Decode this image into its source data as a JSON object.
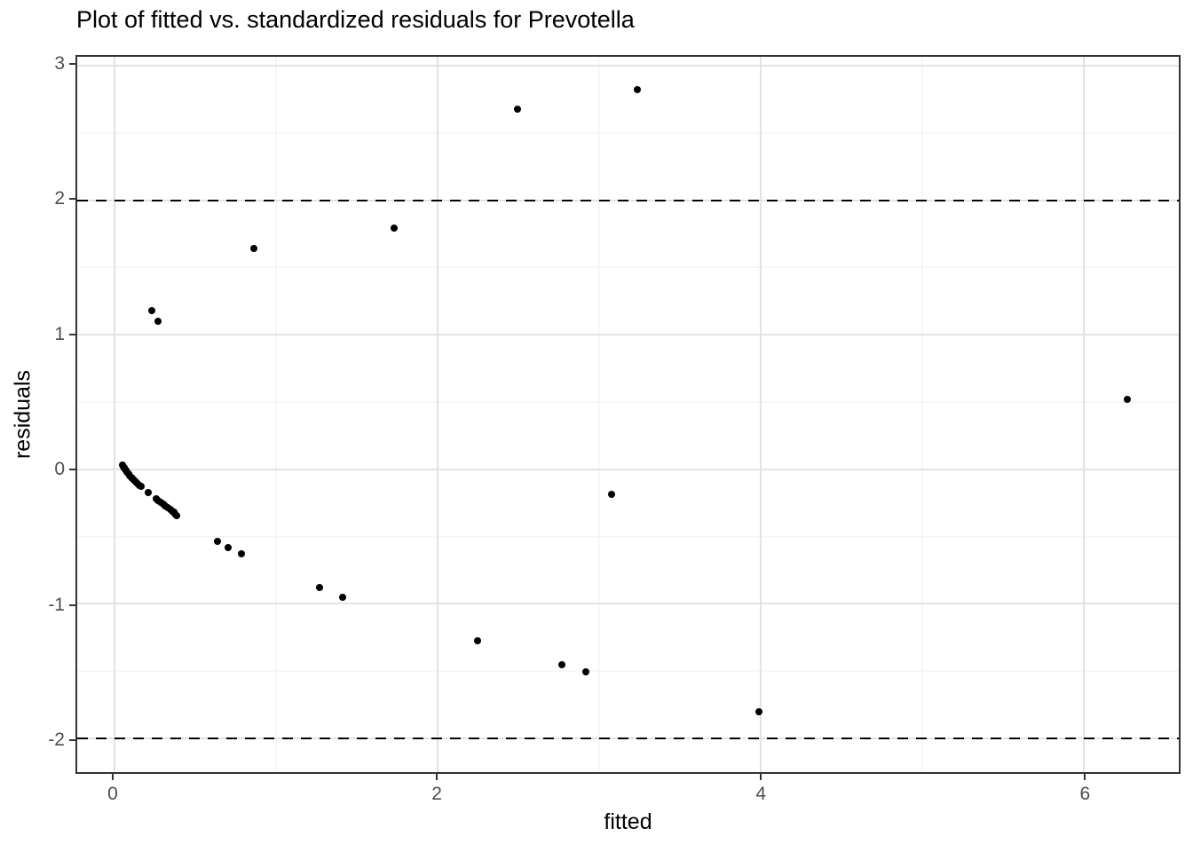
{
  "chart_data": {
    "type": "scatter",
    "title": "Plot of fitted vs. standardized residuals for Prevotella",
    "xlabel": "fitted",
    "ylabel": "residuals",
    "xlim": [
      -0.23,
      6.59
    ],
    "ylim": [
      -2.25,
      3.066
    ],
    "grid": true,
    "legend": null,
    "x_major_ticks": [
      0,
      2,
      4,
      6
    ],
    "x_minor_ticks": [
      1,
      3,
      5
    ],
    "y_major_ticks": [
      -2,
      -1,
      0,
      1,
      2,
      3
    ],
    "y_minor_ticks": [
      -1.5,
      -0.5,
      0.5,
      1.5,
      2.5
    ],
    "hlines": [
      {
        "y": 2,
        "style": "dashed"
      },
      {
        "y": -2,
        "style": "dashed"
      }
    ],
    "points": [
      [
        0.05,
        0.03
      ],
      [
        0.056,
        0.02
      ],
      [
        0.062,
        0.01
      ],
      [
        0.068,
        0.0
      ],
      [
        0.074,
        -0.01
      ],
      [
        0.08,
        -0.022
      ],
      [
        0.088,
        -0.034
      ],
      [
        0.096,
        -0.046
      ],
      [
        0.104,
        -0.058
      ],
      [
        0.113,
        -0.07
      ],
      [
        0.122,
        -0.082
      ],
      [
        0.132,
        -0.094
      ],
      [
        0.143,
        -0.106
      ],
      [
        0.154,
        -0.117
      ],
      [
        0.164,
        -0.125
      ],
      [
        0.208,
        -0.173
      ],
      [
        0.258,
        -0.218
      ],
      [
        0.272,
        -0.232
      ],
      [
        0.287,
        -0.245
      ],
      [
        0.301,
        -0.258
      ],
      [
        0.316,
        -0.272
      ],
      [
        0.331,
        -0.284
      ],
      [
        0.346,
        -0.296
      ],
      [
        0.358,
        -0.308
      ],
      [
        0.368,
        -0.32
      ],
      [
        0.377,
        -0.332
      ],
      [
        0.385,
        -0.342
      ],
      [
        0.232,
        1.177
      ],
      [
        0.272,
        1.1
      ],
      [
        0.866,
        1.64
      ],
      [
        1.733,
        1.79
      ],
      [
        2.495,
        2.677
      ],
      [
        3.24,
        2.821
      ],
      [
        0.641,
        -0.538
      ],
      [
        0.705,
        -0.58
      ],
      [
        0.789,
        -0.626
      ],
      [
        1.271,
        -0.877
      ],
      [
        1.414,
        -0.949
      ],
      [
        2.251,
        -1.273
      ],
      [
        2.771,
        -1.455
      ],
      [
        2.919,
        -1.503
      ],
      [
        3.081,
        -0.184
      ],
      [
        3.993,
        -1.804
      ],
      [
        6.272,
        0.52
      ]
    ]
  },
  "colors": {
    "point": "#000000",
    "grid_major": "#e3e3e3",
    "grid_minor": "#efefef",
    "panel_border": "#333333",
    "tick_label": "#4d4d4d",
    "dashed_line": "#000000",
    "background": "#ffffff"
  }
}
